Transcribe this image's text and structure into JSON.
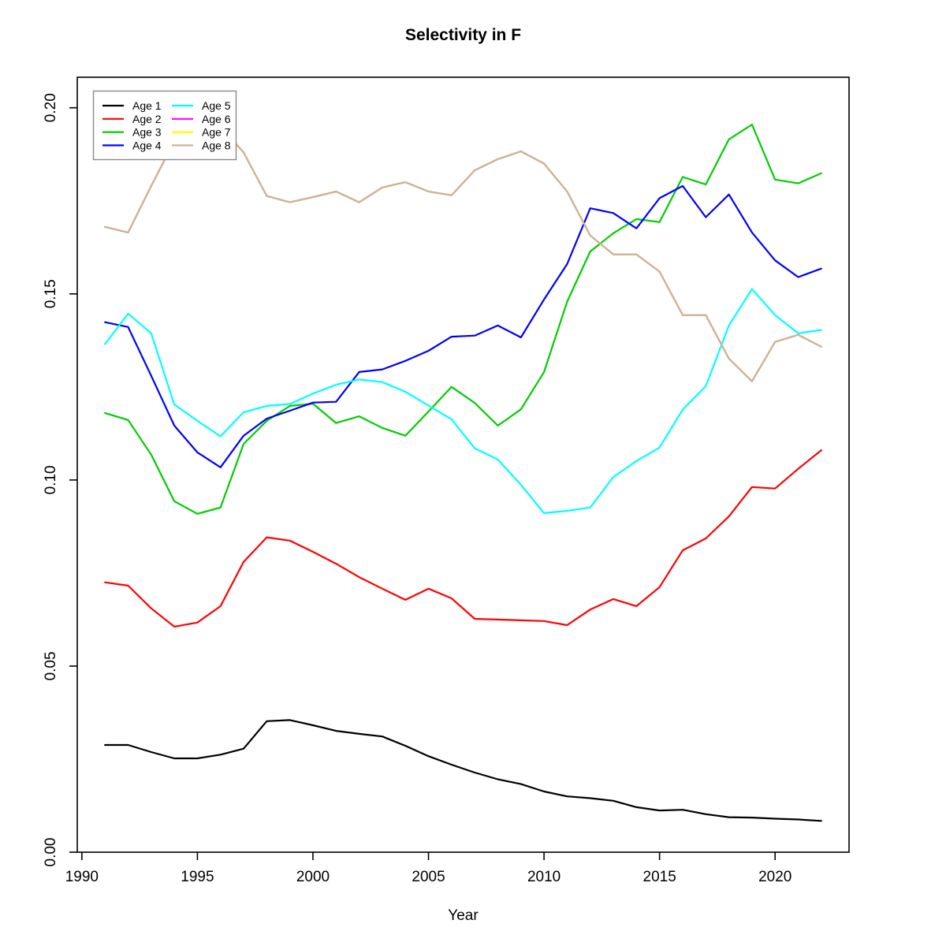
{
  "chart_data": {
    "type": "line",
    "title": "Selectivity in F",
    "xlabel": "Year",
    "ylabel": "",
    "grid": false,
    "xlim": [
      1989.8,
      2023.2
    ],
    "ylim": [
      0,
      0.2082
    ],
    "xticks": [
      1990,
      1995,
      2000,
      2005,
      2010,
      2015,
      2020
    ],
    "yticks": [
      0.0,
      0.05,
      0.1,
      0.15,
      0.2
    ],
    "ytick_labels": [
      "0.00",
      "0.05",
      "0.10",
      "0.15",
      "0.20"
    ],
    "legend": {
      "position": "top-left",
      "columns": 2,
      "border_color": "#8a8a8a"
    },
    "x": [
      1991,
      1992,
      1993,
      1994,
      1995,
      1996,
      1997,
      1998,
      1999,
      2000,
      2001,
      2002,
      2003,
      2004,
      2005,
      2006,
      2007,
      2008,
      2009,
      2010,
      2011,
      2012,
      2013,
      2014,
      2015,
      2016,
      2017,
      2018,
      2019,
      2020,
      2021,
      2022
    ],
    "series": [
      {
        "name": "Age 1",
        "color": "#000000",
        "values": [
          0.0288,
          0.0288,
          0.0269,
          0.0252,
          0.0252,
          0.0262,
          0.0278,
          0.0352,
          0.0355,
          0.0341,
          0.0326,
          0.0318,
          0.0311,
          0.0286,
          0.0258,
          0.0235,
          0.0214,
          0.0196,
          0.0183,
          0.0163,
          0.015,
          0.0145,
          0.0138,
          0.0121,
          0.0112,
          0.0114,
          0.0102,
          0.0094,
          0.0093,
          0.009,
          0.0088,
          0.0084
        ]
      },
      {
        "name": "Age 2",
        "color": "#ff0000",
        "values": [
          0.0725,
          0.0716,
          0.0655,
          0.0606,
          0.0617,
          0.0661,
          0.078,
          0.0846,
          0.0837,
          0.0807,
          0.0775,
          0.0739,
          0.0708,
          0.0678,
          0.0708,
          0.0682,
          0.0627,
          0.0625,
          0.0623,
          0.0621,
          0.061,
          0.0652,
          0.068,
          0.0661,
          0.0712,
          0.0811,
          0.0843,
          0.0902,
          0.0981,
          0.0977,
          0.103,
          0.108
        ]
      },
      {
        "name": "Age 3",
        "color": "#00cd00",
        "values": [
          0.118,
          0.1161,
          0.1068,
          0.0943,
          0.0909,
          0.0926,
          0.1097,
          0.1159,
          0.1199,
          0.1205,
          0.1153,
          0.1171,
          0.114,
          0.1119,
          0.1184,
          0.125,
          0.1207,
          0.1146,
          0.119,
          0.129,
          0.1479,
          0.1614,
          0.1663,
          0.1701,
          0.1693,
          0.1814,
          0.1794,
          0.1915,
          0.1955,
          0.1807,
          0.1797,
          0.1824
        ]
      },
      {
        "name": "Age 4",
        "color": "#0000ff",
        "values": [
          0.1424,
          0.1411,
          0.128,
          0.1146,
          0.1074,
          0.1034,
          0.1119,
          0.1165,
          0.1186,
          0.1208,
          0.121,
          0.129,
          0.1297,
          0.132,
          0.1347,
          0.1385,
          0.1388,
          0.1415,
          0.1383,
          0.1485,
          0.158,
          0.173,
          0.1717,
          0.1676,
          0.1757,
          0.179,
          0.1706,
          0.1767,
          0.1665,
          0.159,
          0.1545,
          0.1568
        ]
      },
      {
        "name": "Age 5",
        "color": "#00ffff",
        "values": [
          0.1365,
          0.1447,
          0.1394,
          0.1203,
          0.1159,
          0.1117,
          0.1182,
          0.1199,
          0.1204,
          0.1232,
          0.1256,
          0.127,
          0.1263,
          0.1237,
          0.12,
          0.1163,
          0.1085,
          0.1055,
          0.0987,
          0.0911,
          0.0917,
          0.0926,
          0.1008,
          0.1051,
          0.1087,
          0.1189,
          0.1252,
          0.1415,
          0.1513,
          0.1443,
          0.1394,
          0.1403
        ]
      },
      {
        "name": "Age 6",
        "color": "#ff00ff",
        "values": [
          0.168,
          0.1665,
          0.179,
          0.191,
          0.196,
          0.195,
          0.188,
          0.1763,
          0.1746,
          0.176,
          0.1775,
          0.1746,
          0.1786,
          0.18,
          0.1775,
          0.1765,
          0.1832,
          0.1862,
          0.1883,
          0.185,
          0.1775,
          0.1657,
          0.1606,
          0.1606,
          0.156,
          0.1443,
          0.1443,
          0.1326,
          0.1265,
          0.1371,
          0.139,
          0.1358
        ]
      },
      {
        "name": "Age 7",
        "color": "#ffff00",
        "values": [
          0.168,
          0.1665,
          0.179,
          0.191,
          0.196,
          0.195,
          0.188,
          0.1763,
          0.1746,
          0.176,
          0.1775,
          0.1746,
          0.1786,
          0.18,
          0.1775,
          0.1765,
          0.1832,
          0.1862,
          0.1883,
          0.185,
          0.1775,
          0.1657,
          0.1606,
          0.1606,
          0.156,
          0.1443,
          0.1443,
          0.1326,
          0.1265,
          0.1371,
          0.139,
          0.1358
        ]
      },
      {
        "name": "Age 8",
        "color": "#c9b49a",
        "values": [
          0.168,
          0.1665,
          0.179,
          0.191,
          0.196,
          0.195,
          0.188,
          0.1763,
          0.1746,
          0.176,
          0.1775,
          0.1746,
          0.1786,
          0.18,
          0.1775,
          0.1765,
          0.1832,
          0.1862,
          0.1883,
          0.185,
          0.1775,
          0.1657,
          0.1606,
          0.1606,
          0.156,
          0.1443,
          0.1443,
          0.1326,
          0.1265,
          0.1371,
          0.139,
          0.1358
        ]
      }
    ]
  }
}
